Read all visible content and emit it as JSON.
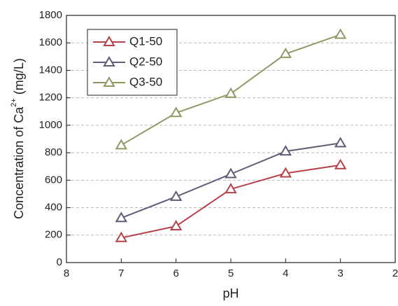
{
  "chart_data": {
    "type": "line",
    "xlabel": "pH",
    "ylabel": [
      "Concentration of Ca",
      "2+",
      " (mg/L)"
    ],
    "x": [
      7,
      6,
      5,
      4,
      3
    ],
    "series": [
      {
        "name": "Q1-50",
        "color": "#b5414a",
        "values": [
          180,
          265,
          535,
          650,
          710
        ]
      },
      {
        "name": "Q2-50",
        "color": "#5e5d78",
        "values": [
          325,
          480,
          645,
          810,
          870
        ]
      },
      {
        "name": "Q3-50",
        "color": "#8c9a64",
        "values": [
          855,
          1090,
          1230,
          1520,
          1660
        ]
      }
    ],
    "xlim": [
      8,
      2
    ],
    "xticks": [
      8,
      7,
      6,
      5,
      4,
      3,
      2
    ],
    "ylim": [
      0,
      1800
    ],
    "yticks": [
      0,
      200,
      400,
      600,
      800,
      1000,
      1200,
      1400,
      1600,
      1800
    ],
    "grid": true,
    "legend": "upper left"
  }
}
